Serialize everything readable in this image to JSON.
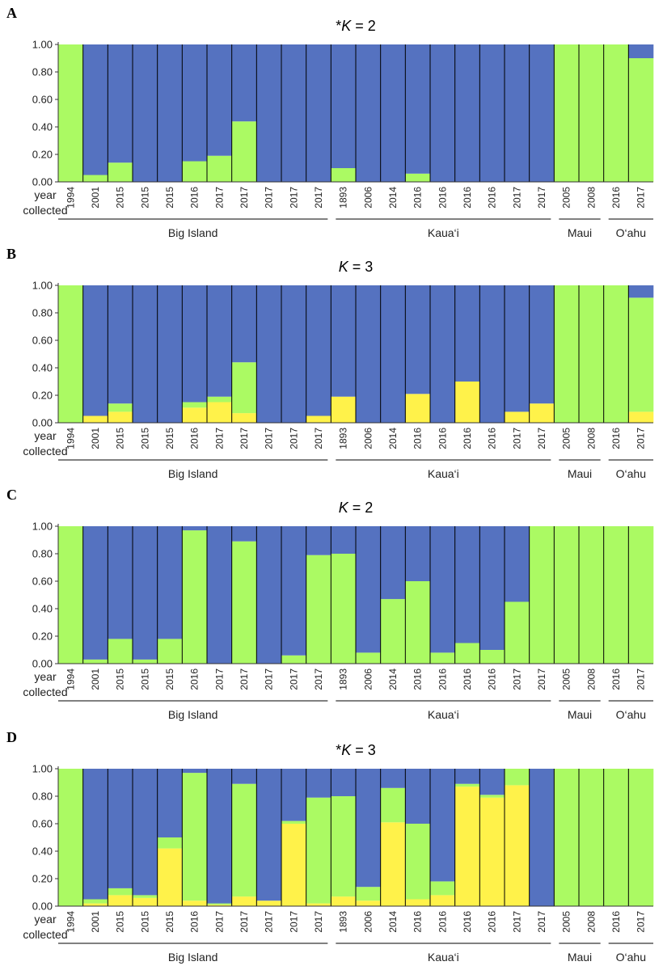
{
  "colors": {
    "blue": "#5572C0",
    "green": "#ABFA63",
    "yellow": "#FFF24A"
  },
  "side_label": [
    "year",
    "collected"
  ],
  "years": [
    "1994",
    "2001",
    "2015",
    "2015",
    "2015",
    "2016",
    "2017",
    "2017",
    "2017",
    "2017",
    "2017",
    "1893",
    "2006",
    "2014",
    "2016",
    "2016",
    "2016",
    "2016",
    "2017",
    "2017",
    "2005",
    "2008",
    "2016",
    "2017"
  ],
  "groups": [
    {
      "name": "Big Island",
      "from": 0,
      "to": 10
    },
    {
      "name": "Kaua‘i",
      "from": 11,
      "to": 19
    },
    {
      "name": "Maui",
      "from": 20,
      "to": 21
    },
    {
      "name": "O‘ahu",
      "from": 22,
      "to": 23
    }
  ],
  "chart_data": [
    {
      "type": "bar",
      "panel": "A",
      "title_prefix": "*",
      "title_k": "K",
      "title_rest": " = 2",
      "ylim": [
        0,
        1
      ],
      "yticks": [
        "0.00",
        "0.20",
        "0.40",
        "0.60",
        "0.80",
        "1.00"
      ],
      "series": [
        {
          "color": "green",
          "values": [
            1.0,
            0.05,
            0.14,
            0.0,
            0.0,
            0.15,
            0.19,
            0.44,
            0.0,
            0.0,
            0.0,
            0.1,
            0.0,
            0.0,
            0.06,
            0.0,
            0.0,
            0.0,
            0.0,
            0.0,
            1.0,
            1.0,
            1.0,
            0.9
          ]
        },
        {
          "color": "blue",
          "values": [
            0.0,
            0.95,
            0.86,
            1.0,
            1.0,
            0.85,
            0.81,
            0.56,
            1.0,
            1.0,
            1.0,
            0.9,
            1.0,
            1.0,
            0.94,
            1.0,
            1.0,
            1.0,
            1.0,
            1.0,
            0.0,
            0.0,
            0.0,
            0.1
          ]
        }
      ]
    },
    {
      "type": "bar",
      "panel": "B",
      "title_prefix": "",
      "title_k": "K",
      "title_rest": " = 3",
      "ylim": [
        0,
        1
      ],
      "yticks": [
        "0.00",
        "0.20",
        "0.40",
        "0.60",
        "0.80",
        "1.00"
      ],
      "series": [
        {
          "color": "yellow",
          "values": [
            0.0,
            0.05,
            0.08,
            0.0,
            0.0,
            0.11,
            0.15,
            0.07,
            0.0,
            0.0,
            0.05,
            0.19,
            0.0,
            0.0,
            0.21,
            0.0,
            0.3,
            0.0,
            0.08,
            0.14,
            0.0,
            0.0,
            0.0,
            0.08
          ]
        },
        {
          "color": "green",
          "values": [
            1.0,
            0.0,
            0.06,
            0.0,
            0.0,
            0.04,
            0.04,
            0.37,
            0.0,
            0.0,
            0.0,
            0.0,
            0.0,
            0.0,
            0.0,
            0.0,
            0.0,
            0.0,
            0.0,
            0.0,
            1.0,
            1.0,
            1.0,
            0.83
          ]
        },
        {
          "color": "blue",
          "values": [
            0.0,
            0.95,
            0.86,
            1.0,
            1.0,
            0.85,
            0.81,
            0.56,
            1.0,
            1.0,
            0.95,
            0.81,
            1.0,
            1.0,
            0.79,
            1.0,
            0.7,
            1.0,
            0.92,
            0.86,
            0.0,
            0.0,
            0.0,
            0.09
          ]
        }
      ]
    },
    {
      "type": "bar",
      "panel": "C",
      "title_prefix": "",
      "title_k": "K",
      "title_rest": " = 2",
      "ylim": [
        0,
        1
      ],
      "yticks": [
        "0.00",
        "0.20",
        "0.40",
        "0.60",
        "0.80",
        "1.00"
      ],
      "series": [
        {
          "color": "green",
          "values": [
            1.0,
            0.03,
            0.18,
            0.03,
            0.18,
            0.97,
            0.0,
            0.89,
            0.0,
            0.06,
            0.79,
            0.8,
            0.08,
            0.47,
            0.6,
            0.08,
            0.15,
            0.1,
            0.45,
            1.0,
            1.0,
            1.0,
            1.0,
            1.0
          ]
        },
        {
          "color": "blue",
          "values": [
            0.0,
            0.97,
            0.82,
            0.97,
            0.82,
            0.03,
            1.0,
            0.11,
            1.0,
            0.94,
            0.21,
            0.2,
            0.92,
            0.53,
            0.4,
            0.92,
            0.85,
            0.9,
            0.55,
            0.0,
            0.0,
            0.0,
            0.0,
            0.0
          ]
        }
      ]
    },
    {
      "type": "bar",
      "panel": "D",
      "title_prefix": "*",
      "title_k": "K",
      "title_rest": " = 3",
      "ylim": [
        0,
        1
      ],
      "yticks": [
        "0.00",
        "0.20",
        "0.40",
        "0.60",
        "0.80",
        "1.00"
      ],
      "series": [
        {
          "color": "yellow",
          "values": [
            0.0,
            0.02,
            0.08,
            0.06,
            0.42,
            0.04,
            0.01,
            0.07,
            0.04,
            0.6,
            0.02,
            0.07,
            0.04,
            0.61,
            0.05,
            0.08,
            0.87,
            0.79,
            0.88,
            0.0,
            0.0,
            0.0,
            0.0,
            0.0
          ]
        },
        {
          "color": "green",
          "values": [
            1.0,
            0.03,
            0.05,
            0.02,
            0.08,
            0.93,
            0.01,
            0.82,
            0.0,
            0.02,
            0.77,
            0.73,
            0.1,
            0.25,
            0.55,
            0.1,
            0.02,
            0.02,
            0.12,
            0.0,
            1.0,
            1.0,
            1.0,
            1.0
          ]
        },
        {
          "color": "blue",
          "values": [
            0.0,
            0.95,
            0.87,
            0.92,
            0.5,
            0.03,
            0.98,
            0.11,
            0.96,
            0.38,
            0.21,
            0.2,
            0.86,
            0.14,
            0.4,
            0.82,
            0.11,
            0.19,
            0.0,
            1.0,
            0.0,
            0.0,
            0.0,
            0.0
          ]
        }
      ]
    }
  ]
}
